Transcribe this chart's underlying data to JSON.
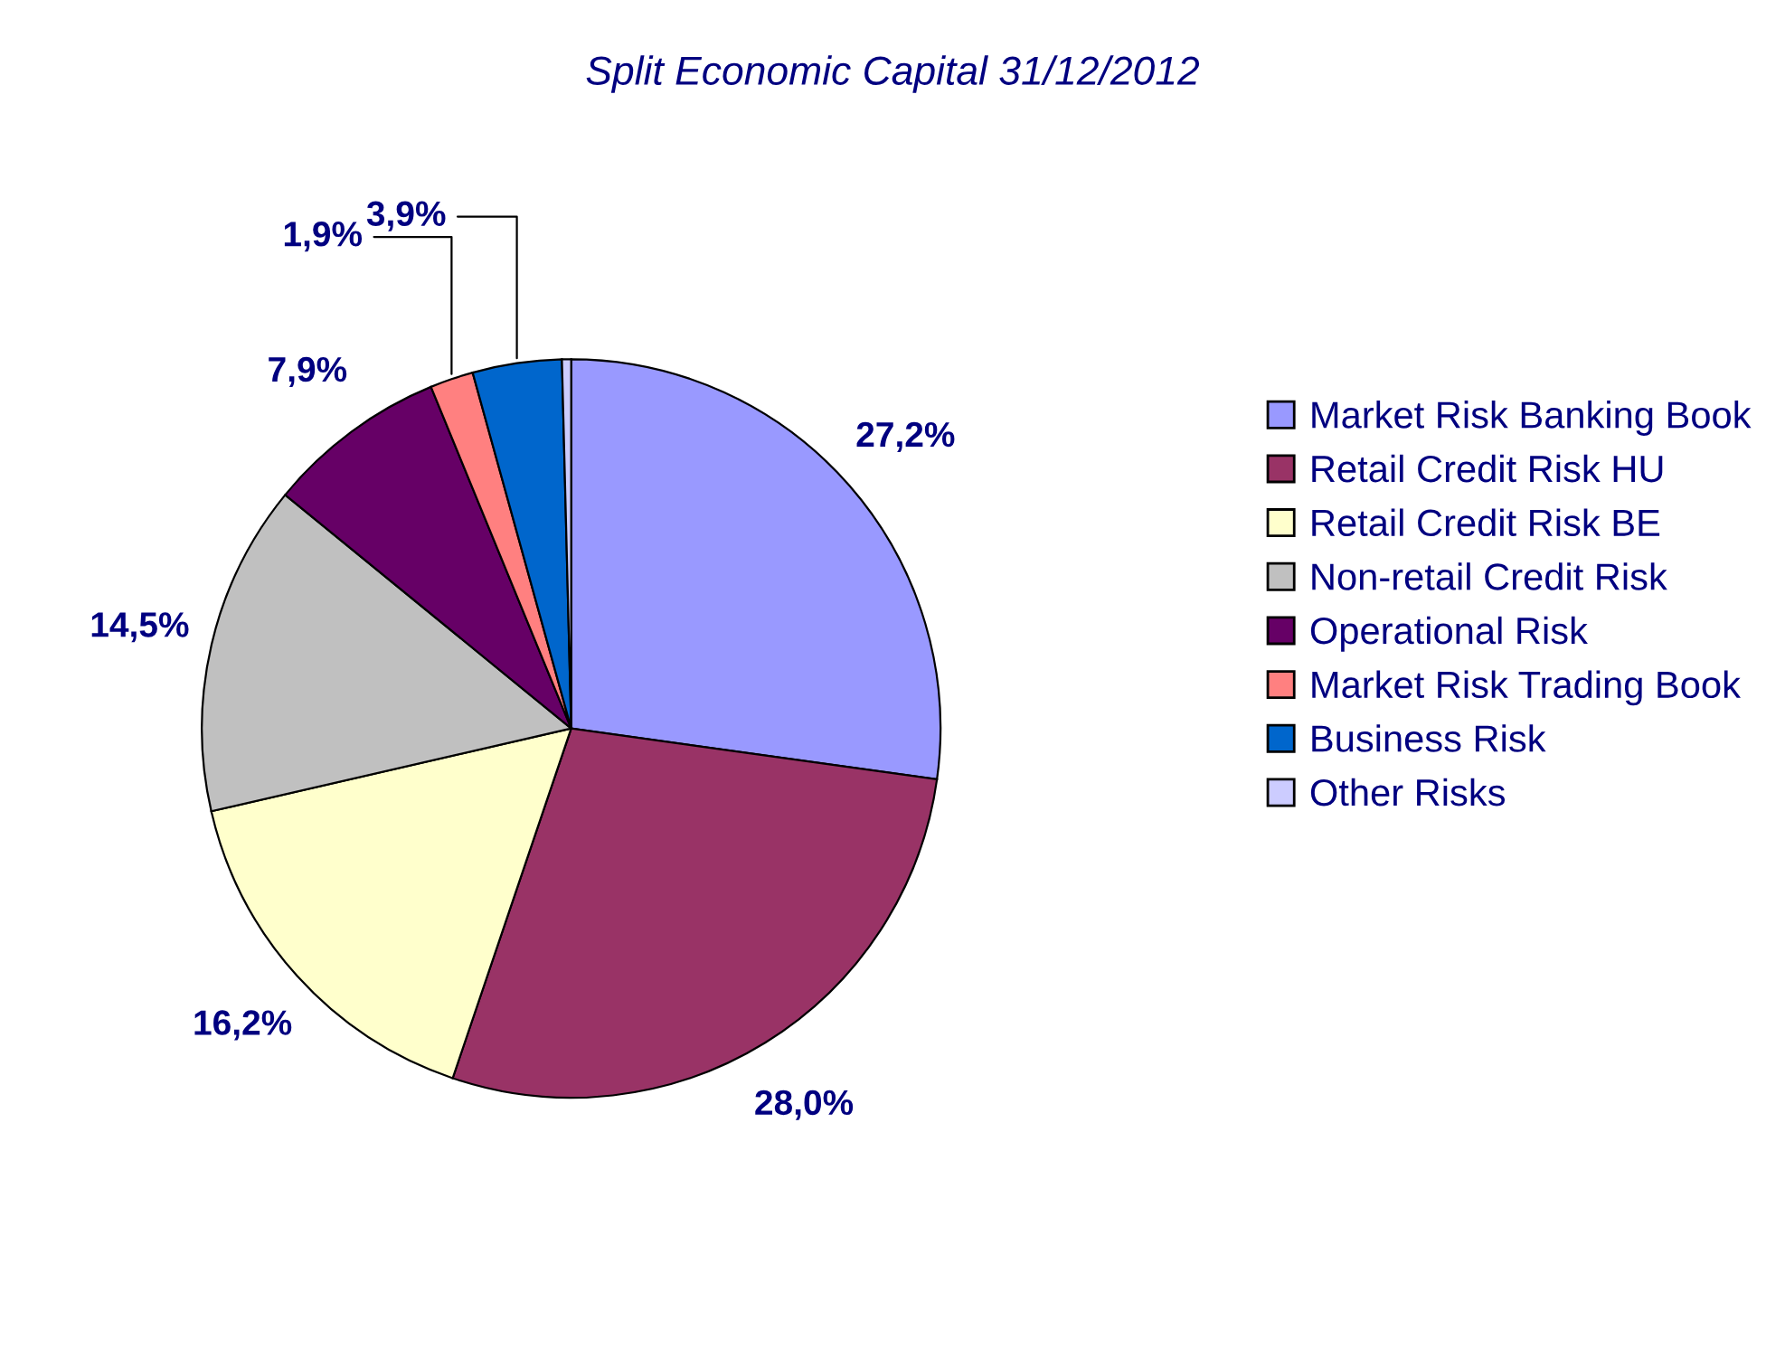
{
  "chart_data": {
    "type": "pie",
    "title": "Split Economic Capital 31/12/2012",
    "categories": [
      "Market Risk Banking Book",
      "Retail Credit Risk HU",
      "Retail Credit Risk BE",
      "Non-retail Credit Risk",
      "Operational Risk",
      "Market Risk Trading Book",
      "Business Risk",
      "Other Risks"
    ],
    "values": [
      27.2,
      28.0,
      16.2,
      14.5,
      7.9,
      1.9,
      3.9,
      0.4
    ],
    "value_labels": [
      "27,2%",
      "28,0%",
      "16,2%",
      "14,5%",
      "7,9%",
      "1,9%",
      "3,9%",
      null
    ],
    "colors": [
      "#9999ff",
      "#993366",
      "#ffffcc",
      "#c0c0c0",
      "#660066",
      "#ff8080",
      "#0066cc",
      "#ccccff"
    ],
    "legend": "right"
  }
}
